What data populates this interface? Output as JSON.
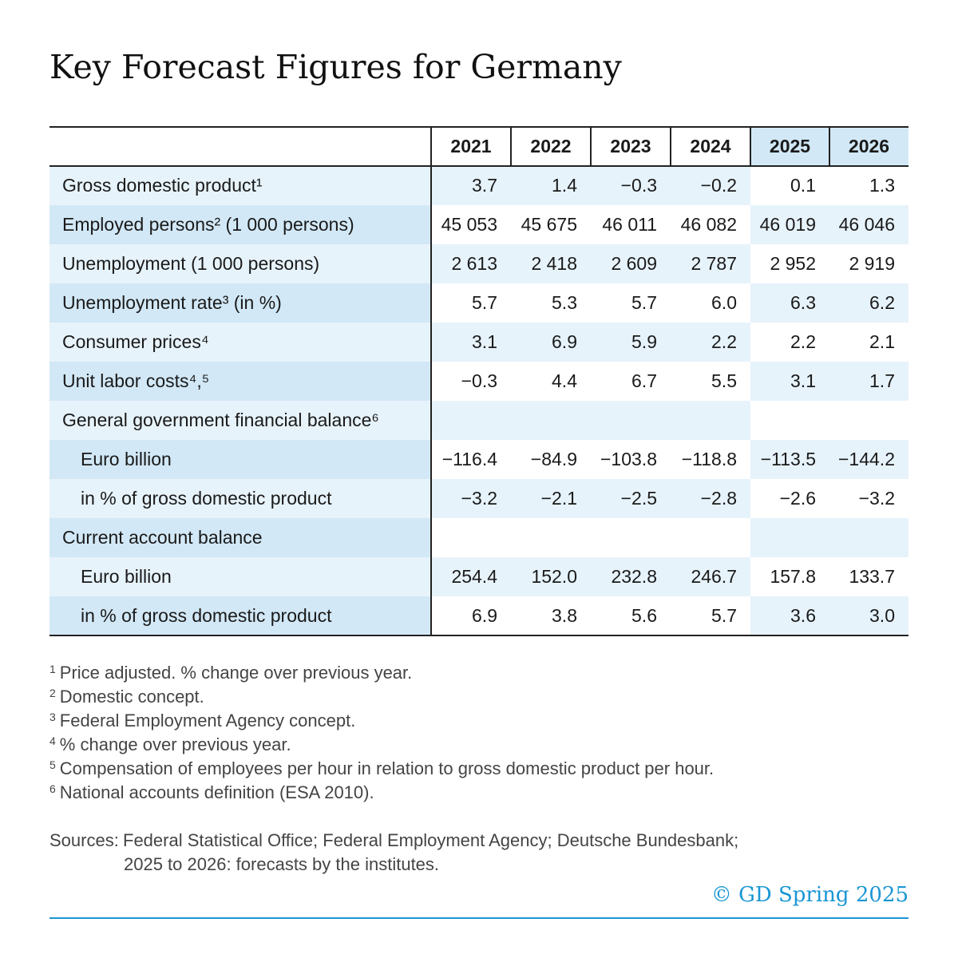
{
  "header": {
    "title": "Key Forecast Figures for Germany"
  },
  "table": {
    "columns": [
      "2021",
      "2022",
      "2023",
      "2024",
      "2025",
      "2026"
    ],
    "forecast_columns": [
      4,
      5
    ],
    "rows": [
      {
        "label": "Gross domestic product¹",
        "values": [
          "3.7",
          "1.4",
          "−0.3",
          "−0.2",
          "0.1",
          "1.3"
        ]
      },
      {
        "label": "Employed persons² (1 000 persons)",
        "values": [
          "45 053",
          "45 675",
          "46 011",
          "46 082",
          "46 019",
          "46 046"
        ]
      },
      {
        "label": "Unemployment (1 000 persons)",
        "values": [
          "2 613",
          "2 418",
          "2 609",
          "2 787",
          "2 952",
          "2 919"
        ]
      },
      {
        "label": "Unemployment rate³ (in %)",
        "values": [
          "5.7",
          "5.3",
          "5.7",
          "6.0",
          "6.3",
          "6.2"
        ]
      },
      {
        "label": "Consumer prices⁴",
        "values": [
          "3.1",
          "6.9",
          "5.9",
          "2.2",
          "2.2",
          "2.1"
        ]
      },
      {
        "label": "Unit labor costs⁴,⁵",
        "values": [
          "−0.3",
          "4.4",
          "6.7",
          "5.5",
          "3.1",
          "1.7"
        ]
      },
      {
        "label": "General government financial balance⁶",
        "subrows": [
          {
            "label": "Euro billion",
            "values": [
              "−116.4",
              "−84.9",
              "−103.8",
              "−118.8",
              "−113.5",
              "−144.2"
            ]
          },
          {
            "label": "in % of gross domestic product",
            "values": [
              "−3.2",
              "−2.1",
              "−2.5",
              "−2.8",
              "−2.6",
              "−3.2"
            ]
          }
        ]
      },
      {
        "label": "Current account balance",
        "subrows": [
          {
            "label": "Euro billion",
            "values": [
              "254.4",
              "152.0",
              "232.8",
              "246.7",
              "157.8",
              "133.7"
            ]
          },
          {
            "label": "in % of gross domestic product",
            "values": [
              "6.9",
              "3.8",
              "5.6",
              "5.7",
              "3.6",
              "3.0"
            ]
          }
        ]
      }
    ]
  },
  "footnotes": [
    {
      "mark": "1",
      "text": "Price adjusted. % change over previous year."
    },
    {
      "mark": "2",
      "text": "Domestic concept."
    },
    {
      "mark": "3",
      "text": "Federal Employment Agency concept."
    },
    {
      "mark": "4",
      "text": "% change over previous year."
    },
    {
      "mark": "5",
      "text": "Compensation of employees per hour in relation to gross domestic product per hour."
    },
    {
      "mark": "6",
      "text": "National accounts definition (ESA 2010)."
    }
  ],
  "sources": {
    "label": "Sources:",
    "lines": [
      "Federal Statistical Office; Federal Employment Agency; Deutsche Bundesbank;",
      "2025 to 2026: forecasts by the institutes."
    ]
  },
  "copyright": "© GD Spring 2025"
}
